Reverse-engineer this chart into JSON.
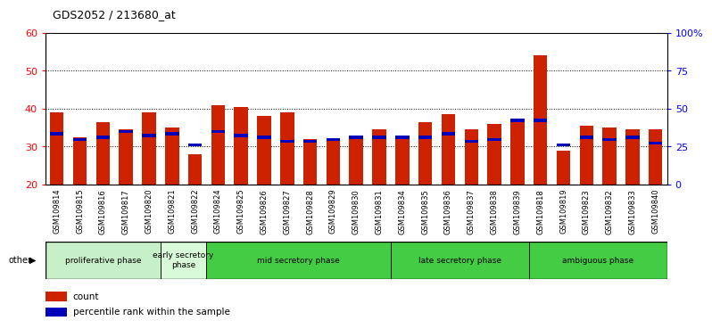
{
  "title": "GDS2052 / 213680_at",
  "samples": [
    "GSM109814",
    "GSM109815",
    "GSM109816",
    "GSM109817",
    "GSM109820",
    "GSM109821",
    "GSM109822",
    "GSM109824",
    "GSM109825",
    "GSM109826",
    "GSM109827",
    "GSM109828",
    "GSM109829",
    "GSM109830",
    "GSM109831",
    "GSM109834",
    "GSM109835",
    "GSM109836",
    "GSM109837",
    "GSM109838",
    "GSM109839",
    "GSM109818",
    "GSM109819",
    "GSM109823",
    "GSM109832",
    "GSM109833",
    "GSM109840"
  ],
  "count_values": [
    39.0,
    32.5,
    36.5,
    34.5,
    39.0,
    35.0,
    28.0,
    41.0,
    40.5,
    38.0,
    39.0,
    32.0,
    32.0,
    32.0,
    34.5,
    33.0,
    36.5,
    38.5,
    34.5,
    36.0,
    36.5,
    54.0,
    29.0,
    35.5,
    35.0,
    34.5,
    34.5
  ],
  "percentile_values": [
    33.0,
    31.5,
    32.0,
    33.5,
    32.5,
    33.0,
    30.0,
    33.5,
    32.5,
    32.0,
    31.0,
    31.0,
    31.5,
    32.0,
    32.0,
    32.0,
    32.0,
    33.0,
    31.0,
    31.5,
    36.5,
    36.5,
    30.0,
    32.0,
    31.5,
    32.0,
    30.5
  ],
  "ylim_left": [
    20,
    60
  ],
  "yticks_left": [
    20,
    30,
    40,
    50,
    60
  ],
  "ylim_right": [
    0,
    100
  ],
  "yticks_right": [
    0,
    25,
    50,
    75,
    100
  ],
  "yticks_right_labels": [
    "0",
    "25",
    "50",
    "75",
    "100%"
  ],
  "bar_width": 0.6,
  "count_color": "#cc2200",
  "percentile_color": "#0000bb",
  "tick_bg": "#d0d0d0",
  "phase_data": [
    {
      "label": "proliferative phase",
      "start": 0,
      "end": 5,
      "color": "#c8f0c8"
    },
    {
      "label": "early secretory\nphase",
      "start": 5,
      "end": 7,
      "color": "#d8fad8"
    },
    {
      "label": "mid secretory phase",
      "start": 7,
      "end": 15,
      "color": "#44cc44"
    },
    {
      "label": "late secretory phase",
      "start": 15,
      "end": 21,
      "color": "#44cc44"
    },
    {
      "label": "ambiguous phase",
      "start": 21,
      "end": 27,
      "color": "#44cc44"
    }
  ]
}
